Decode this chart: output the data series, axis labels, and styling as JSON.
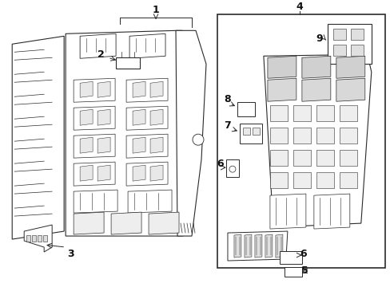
{
  "bg_color": "#ffffff",
  "line_color": "#2a2a2a",
  "gray_light": "#c8c8c8",
  "gray_med": "#999999",
  "fig_width": 4.89,
  "fig_height": 3.6,
  "dpi": 100,
  "font_size": 8.5,
  "label_color": "#111111"
}
